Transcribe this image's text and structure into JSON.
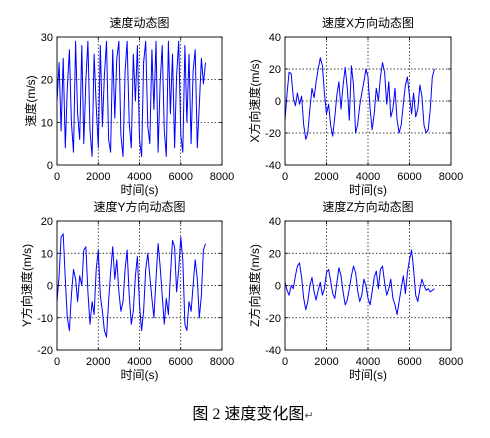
{
  "figure": {
    "caption": "图 2  速度变化图",
    "paragraph_mark": "↵"
  },
  "colors": {
    "line": "#0000ff",
    "axes": "#000000",
    "background": "#ffffff"
  },
  "chart_data": [
    {
      "type": "line",
      "title": "速度动态图",
      "xlabel": "时间(s)",
      "ylabel": "速度(m/s)",
      "xlim": [
        0,
        8000
      ],
      "ylim": [
        0,
        30
      ],
      "xticks": [
        0,
        2000,
        4000,
        6000,
        8000
      ],
      "yticks": [
        0,
        10,
        20,
        30
      ],
      "grid": true,
      "x": [
        0,
        100,
        200,
        300,
        400,
        500,
        600,
        700,
        800,
        900,
        1000,
        1100,
        1200,
        1300,
        1400,
        1500,
        1600,
        1700,
        1800,
        1900,
        2000,
        2100,
        2200,
        2300,
        2400,
        2500,
        2600,
        2700,
        2800,
        2900,
        3000,
        3100,
        3200,
        3300,
        3400,
        3500,
        3600,
        3700,
        3800,
        3900,
        4000,
        4100,
        4200,
        4300,
        4400,
        4500,
        4600,
        4700,
        4800,
        4900,
        5000,
        5100,
        5200,
        5300,
        5400,
        5500,
        5600,
        5700,
        5800,
        5900,
        6000,
        6100,
        6200,
        6300,
        6400,
        6500,
        6600,
        6700,
        6800,
        6900,
        7000,
        7100,
        7200
      ],
      "series": [
        {
          "values": [
            15,
            24,
            8,
            25,
            4,
            18,
            27,
            10,
            3,
            29,
            12,
            6,
            28,
            5,
            20,
            29,
            8,
            2,
            26,
            14,
            4,
            28,
            9,
            21,
            29,
            6,
            3,
            27,
            11,
            25,
            29,
            7,
            2,
            22,
            29,
            10,
            4,
            26,
            15,
            28,
            6,
            2,
            24,
            29,
            9,
            5,
            27,
            13,
            29,
            3,
            19,
            28,
            8,
            2,
            29,
            12,
            26,
            4,
            21,
            29,
            7,
            3,
            28,
            10,
            26,
            5,
            22,
            27,
            4,
            14,
            25,
            19,
            24
          ]
        }
      ]
    },
    {
      "type": "line",
      "title": "速度X方向动态图",
      "xlabel": "时间(s)",
      "ylabel": "X方向速度(m/s)",
      "xlim": [
        0,
        8000
      ],
      "ylim": [
        -40,
        40
      ],
      "xticks": [
        0,
        2000,
        4000,
        6000,
        8000
      ],
      "yticks": [
        -40,
        -20,
        0,
        20,
        40
      ],
      "grid": true,
      "x": [
        0,
        100,
        200,
        300,
        400,
        500,
        600,
        700,
        800,
        900,
        1000,
        1100,
        1200,
        1300,
        1400,
        1500,
        1600,
        1700,
        1800,
        1900,
        2000,
        2100,
        2200,
        2300,
        2400,
        2500,
        2600,
        2700,
        2800,
        2900,
        3000,
        3100,
        3200,
        3300,
        3400,
        3500,
        3600,
        3700,
        3800,
        3900,
        4000,
        4100,
        4200,
        4300,
        4400,
        4500,
        4600,
        4700,
        4800,
        4900,
        5000,
        5100,
        5200,
        5300,
        5400,
        5500,
        5600,
        5700,
        5800,
        5900,
        6000,
        6100,
        6200,
        6300,
        6400,
        6500,
        6600,
        6700,
        6800,
        6900,
        7000,
        7100,
        7200
      ],
      "series": [
        {
          "values": [
            -12,
            5,
            18,
            17,
            2,
            -3,
            5,
            -2,
            3,
            -15,
            -24,
            -20,
            -5,
            8,
            2,
            12,
            20,
            27,
            22,
            5,
            -8,
            -2,
            -15,
            -22,
            -10,
            4,
            12,
            -5,
            10,
            21,
            8,
            -12,
            22,
            10,
            -20,
            -15,
            -3,
            5,
            12,
            20,
            15,
            -5,
            -18,
            -8,
            8,
            0,
            15,
            24,
            18,
            -2,
            12,
            -10,
            -5,
            8,
            -12,
            -20,
            -15,
            -2,
            10,
            15,
            3,
            -8,
            5,
            -10,
            -5,
            10,
            3,
            -15,
            -20,
            -18,
            -5,
            15,
            20
          ]
        }
      ]
    },
    {
      "type": "line",
      "title": "速度Y方向动态图",
      "xlabel": "时间(s)",
      "ylabel": "Y方向速度(m/s)",
      "xlim": [
        0,
        8000
      ],
      "ylim": [
        -20,
        20
      ],
      "xticks": [
        0,
        2000,
        4000,
        6000,
        8000
      ],
      "yticks": [
        -20,
        -10,
        0,
        10,
        20
      ],
      "grid": true,
      "x": [
        0,
        100,
        200,
        300,
        400,
        500,
        600,
        700,
        800,
        900,
        1000,
        1100,
        1200,
        1300,
        1400,
        1500,
        1600,
        1700,
        1800,
        1900,
        2000,
        2100,
        2200,
        2300,
        2400,
        2500,
        2600,
        2700,
        2800,
        2900,
        3000,
        3100,
        3200,
        3300,
        3400,
        3500,
        3600,
        3700,
        3800,
        3900,
        4000,
        4100,
        4200,
        4300,
        4400,
        4500,
        4600,
        4700,
        4800,
        4900,
        5000,
        5100,
        5200,
        5300,
        5400,
        5500,
        5600,
        5700,
        5800,
        5900,
        6000,
        6100,
        6200,
        6300,
        6400,
        6500,
        6600,
        6700,
        6800,
        6900,
        7000,
        7100,
        7200
      ],
      "series": [
        {
          "values": [
            -5,
            3,
            15,
            16,
            2,
            -10,
            -14,
            -3,
            5,
            2,
            -5,
            3,
            0,
            11,
            12,
            -2,
            -12,
            -5,
            -9,
            5,
            11,
            -3,
            -8,
            -14,
            -16,
            -5,
            4,
            12,
            2,
            8,
            -2,
            -8,
            -5,
            5,
            11,
            -3,
            -12,
            -8,
            3,
            9,
            -6,
            -14,
            -8,
            5,
            10,
            3,
            -4,
            -10,
            2,
            13,
            6,
            -3,
            -12,
            -4,
            -9,
            3,
            14,
            12,
            -2,
            5,
            15,
            8,
            -12,
            -14,
            -5,
            -8,
            0,
            8,
            2,
            -10,
            -3,
            11,
            13
          ]
        }
      ]
    },
    {
      "type": "line",
      "title": "速度Z方向动态图",
      "xlabel": "时间(s)",
      "ylabel": "Z方向速度(m/s)",
      "xlim": [
        0,
        8000
      ],
      "ylim": [
        -40,
        40
      ],
      "xticks": [
        0,
        2000,
        4000,
        6000,
        8000
      ],
      "yticks": [
        -40,
        -20,
        0,
        20,
        40
      ],
      "grid": true,
      "x": [
        0,
        100,
        200,
        300,
        400,
        500,
        600,
        700,
        800,
        900,
        1000,
        1100,
        1200,
        1300,
        1400,
        1500,
        1600,
        1700,
        1800,
        1900,
        2000,
        2100,
        2200,
        2300,
        2400,
        2500,
        2600,
        2700,
        2800,
        2900,
        3000,
        3100,
        3200,
        3300,
        3400,
        3500,
        3600,
        3700,
        3800,
        3900,
        4000,
        4100,
        4200,
        4300,
        4400,
        4500,
        4600,
        4700,
        4800,
        4900,
        5000,
        5100,
        5200,
        5300,
        5400,
        5500,
        5600,
        5700,
        5800,
        5900,
        6000,
        6100,
        6200,
        6300,
        6400,
        6500,
        6600,
        6700,
        6800,
        6900,
        7000,
        7100,
        7200
      ],
      "series": [
        {
          "values": [
            2,
            -3,
            -6,
            0,
            -2,
            6,
            12,
            14,
            5,
            -8,
            -15,
            -10,
            0,
            5,
            -4,
            -9,
            -3,
            2,
            -6,
            -2,
            8,
            10,
            3,
            -5,
            -8,
            2,
            11,
            6,
            -4,
            -12,
            -9,
            -2,
            6,
            12,
            8,
            -3,
            -10,
            -6,
            4,
            0,
            -8,
            -12,
            -4,
            5,
            9,
            -2,
            10,
            12,
            2,
            -6,
            -2,
            4,
            -8,
            -12,
            -18,
            -10,
            -2,
            6,
            -5,
            8,
            16,
            22,
            10,
            -6,
            -10,
            -2,
            4,
            0,
            -3,
            -2,
            -4,
            -3,
            -2
          ]
        }
      ]
    }
  ]
}
